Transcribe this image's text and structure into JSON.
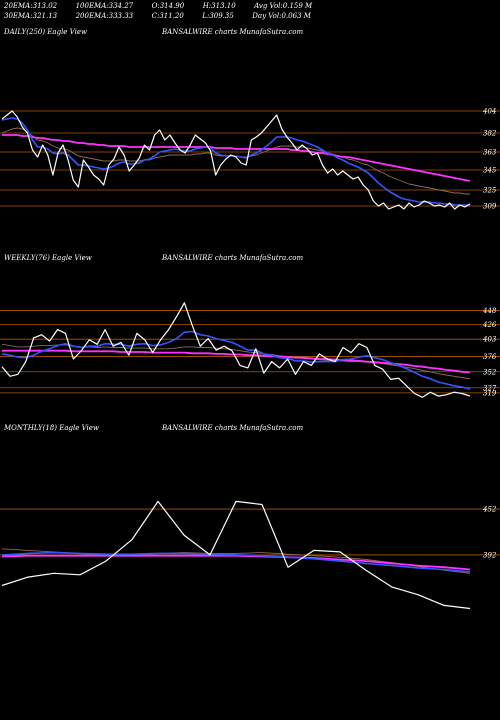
{
  "header": {
    "row1": [
      {
        "label": "20EMA:",
        "value": "313.02"
      },
      {
        "label": "100EMA:",
        "value": "334.27"
      },
      {
        "label": "O:",
        "value": "314.90"
      },
      {
        "label": "H:",
        "value": "313.10"
      },
      {
        "label": "Avg Vol:",
        "value": "0.159 M"
      }
    ],
    "row2": [
      {
        "label": "30EMA:",
        "value": "321.13"
      },
      {
        "label": "200EMA:",
        "value": "333.33"
      },
      {
        "label": "C:",
        "value": "311.20"
      },
      {
        "label": "L:",
        "value": "309.35"
      },
      {
        "label": "Day Vol:",
        "value": "0.063 M"
      }
    ]
  },
  "colors": {
    "price": "#ffffff",
    "ema_fast": "#3355ff",
    "ema_long": "#ff33ff",
    "level": "#b35900",
    "ema_other": "#8c6c5a"
  },
  "chart_data": [
    {
      "type": "line",
      "title_left": "DAILY(250) Eagle  View",
      "title_center": "BANSALWIRE charts MunafaSutra.com",
      "levels": [
        "404",
        "382",
        "363",
        "345",
        "325",
        "309"
      ],
      "ylim": [
        300,
        420
      ],
      "series": [
        {
          "role": "price",
          "values": [
            396,
            400,
            404,
            398,
            388,
            382,
            365,
            358,
            370,
            360,
            340,
            362,
            370,
            355,
            335,
            328,
            355,
            348,
            340,
            336,
            330,
            350,
            356,
            368,
            360,
            344,
            350,
            357,
            370,
            365,
            380,
            385,
            375,
            380,
            372,
            365,
            362,
            370,
            380,
            376,
            372,
            364,
            340,
            350,
            356,
            360,
            358,
            352,
            350,
            375,
            378,
            382,
            388,
            394,
            400,
            386,
            378,
            372,
            365,
            370,
            366,
            360,
            362,
            350,
            342,
            346,
            340,
            344,
            340,
            336,
            338,
            330,
            325,
            314,
            309,
            312,
            306,
            308,
            310,
            306,
            312,
            308,
            310,
            314,
            312,
            309,
            310,
            308,
            312,
            306,
            310,
            308,
            311
          ]
        },
        {
          "role": "ema_fast",
          "values": [
            395,
            396,
            397,
            396,
            392,
            385,
            375,
            368,
            368,
            366,
            362,
            361,
            362,
            360,
            355,
            350,
            350,
            349,
            348,
            347,
            346,
            347,
            349,
            352,
            353,
            351,
            351,
            352,
            355,
            356,
            359,
            363,
            364,
            365,
            366,
            365,
            364,
            364,
            366,
            367,
            368,
            367,
            362,
            360,
            359,
            359,
            359,
            358,
            357,
            360,
            362,
            365,
            369,
            373,
            378,
            378,
            378,
            377,
            375,
            374,
            372,
            370,
            368,
            365,
            362,
            360,
            357,
            355,
            352,
            350,
            348,
            345,
            342,
            337,
            332,
            328,
            324,
            321,
            318,
            316,
            315,
            314,
            313,
            313,
            313,
            312,
            312,
            311,
            311,
            310,
            310,
            310,
            310
          ]
        },
        {
          "role": "ema_other",
          "values": [
            382,
            384,
            386,
            387,
            386,
            383,
            379,
            375,
            374,
            372,
            369,
            367,
            366,
            365,
            362,
            359,
            358,
            357,
            356,
            355,
            354,
            354,
            354,
            355,
            355,
            354,
            354,
            354,
            355,
            355,
            357,
            358,
            359,
            360,
            360,
            360,
            360,
            360,
            361,
            361,
            362,
            362,
            360,
            359,
            359,
            359,
            359,
            358,
            358,
            359,
            360,
            362,
            364,
            366,
            368,
            369,
            369,
            369,
            368,
            368,
            367,
            366,
            365,
            364,
            362,
            361,
            359,
            358,
            356,
            355,
            353,
            351,
            350,
            347,
            344,
            342,
            339,
            337,
            335,
            333,
            331,
            330,
            329,
            328,
            327,
            326,
            325,
            324,
            323,
            322,
            322,
            321,
            321
          ]
        },
        {
          "role": "ema_long",
          "values": [
            380,
            380,
            380,
            380,
            379,
            379,
            378,
            377,
            377,
            376,
            375,
            375,
            374,
            374,
            373,
            372,
            372,
            371,
            371,
            370,
            370,
            369,
            369,
            369,
            369,
            368,
            368,
            368,
            368,
            368,
            368,
            368,
            368,
            368,
            368,
            368,
            368,
            368,
            368,
            368,
            368,
            368,
            367,
            367,
            367,
            367,
            366,
            366,
            366,
            366,
            366,
            366,
            366,
            366,
            366,
            366,
            366,
            365,
            365,
            364,
            364,
            363,
            362,
            362,
            361,
            360,
            359,
            358,
            358,
            357,
            356,
            355,
            354,
            353,
            352,
            351,
            350,
            349,
            348,
            347,
            346,
            345,
            344,
            343,
            342,
            341,
            340,
            339,
            338,
            337,
            336,
            335,
            334
          ]
        }
      ]
    },
    {
      "type": "line",
      "title_left": "WEEKLY(76) Eagle  View",
      "title_center": "BANSALWIRE charts MunafaSutra.com",
      "levels": [
        "448",
        "426",
        "403",
        "376",
        "352",
        "327",
        "319"
      ],
      "ylim": [
        300,
        480
      ],
      "series": [
        {
          "role": "price",
          "values": [
            360,
            345,
            348,
            368,
            405,
            410,
            400,
            418,
            412,
            372,
            385,
            402,
            395,
            418,
            392,
            398,
            378,
            412,
            402,
            382,
            402,
            418,
            438,
            460,
            424,
            392,
            404,
            386,
            392,
            385,
            362,
            358,
            388,
            350,
            368,
            358,
            372,
            348,
            368,
            362,
            380,
            372,
            368,
            390,
            382,
            396,
            390,
            362,
            356,
            340,
            342,
            330,
            318,
            312,
            320,
            314,
            316,
            320,
            318,
            314
          ]
        },
        {
          "role": "ema_fast",
          "values": [
            380,
            378,
            375,
            374,
            378,
            384,
            388,
            393,
            396,
            392,
            390,
            392,
            392,
            396,
            395,
            395,
            392,
            395,
            396,
            393,
            394,
            398,
            404,
            414,
            415,
            410,
            408,
            404,
            401,
            398,
            392,
            386,
            386,
            380,
            378,
            374,
            373,
            369,
            369,
            367,
            368,
            368,
            368,
            371,
            372,
            375,
            377,
            374,
            371,
            366,
            362,
            357,
            351,
            345,
            341,
            336,
            333,
            330,
            328,
            325
          ]
        },
        {
          "role": "ema_other",
          "values": [
            395,
            393,
            391,
            391,
            392,
            393,
            393,
            394,
            394,
            392,
            391,
            391,
            390,
            391,
            390,
            390,
            389,
            389,
            389,
            388,
            388,
            388,
            389,
            391,
            391,
            390,
            390,
            389,
            388,
            387,
            385,
            383,
            382,
            380,
            379,
            377,
            376,
            374,
            373,
            372,
            371,
            370,
            369,
            369,
            368,
            368,
            367,
            366,
            365,
            363,
            361,
            359,
            357,
            354,
            352,
            349,
            347,
            345,
            343,
            341
          ]
        },
        {
          "role": "ema_long",
          "values": [
            385,
            385,
            385,
            385,
            385,
            385,
            385,
            385,
            385,
            384,
            384,
            384,
            384,
            384,
            384,
            383,
            383,
            383,
            383,
            382,
            382,
            382,
            382,
            382,
            381,
            381,
            381,
            380,
            380,
            379,
            379,
            378,
            378,
            377,
            376,
            376,
            375,
            374,
            374,
            373,
            372,
            372,
            371,
            370,
            370,
            369,
            368,
            367,
            366,
            365,
            364,
            363,
            361,
            360,
            358,
            357,
            355,
            354,
            352,
            351
          ]
        }
      ]
    },
    {
      "type": "line",
      "title_left": "MONTHLY(18) Eagle  View",
      "title_center": "BANSALWIRE charts MunafaSutra.com",
      "levels": [
        "452",
        "392"
      ],
      "ylim": [
        320,
        490
      ],
      "series": [
        {
          "role": "price",
          "values": [
            352,
            363,
            368,
            366,
            384,
            412,
            462,
            418,
            392,
            462,
            458,
            376,
            398,
            396,
            372,
            350,
            340,
            326,
            322
          ]
        },
        {
          "role": "ema_fast",
          "values": [
            392,
            394,
            395,
            394,
            393,
            393,
            394,
            394,
            393,
            392,
            391,
            389,
            387,
            384,
            381,
            378,
            375,
            373,
            370
          ]
        },
        {
          "role": "ema_other",
          "values": [
            400,
            398,
            396,
            394,
            392,
            392,
            394,
            395,
            394,
            394,
            395,
            393,
            391,
            389,
            386,
            382,
            377,
            372,
            368
          ]
        },
        {
          "role": "ema_long",
          "values": [
            390,
            391,
            391,
            391,
            391,
            391,
            391,
            391,
            391,
            391,
            390,
            389,
            388,
            386,
            384,
            381,
            378,
            376,
            373
          ]
        }
      ]
    }
  ]
}
